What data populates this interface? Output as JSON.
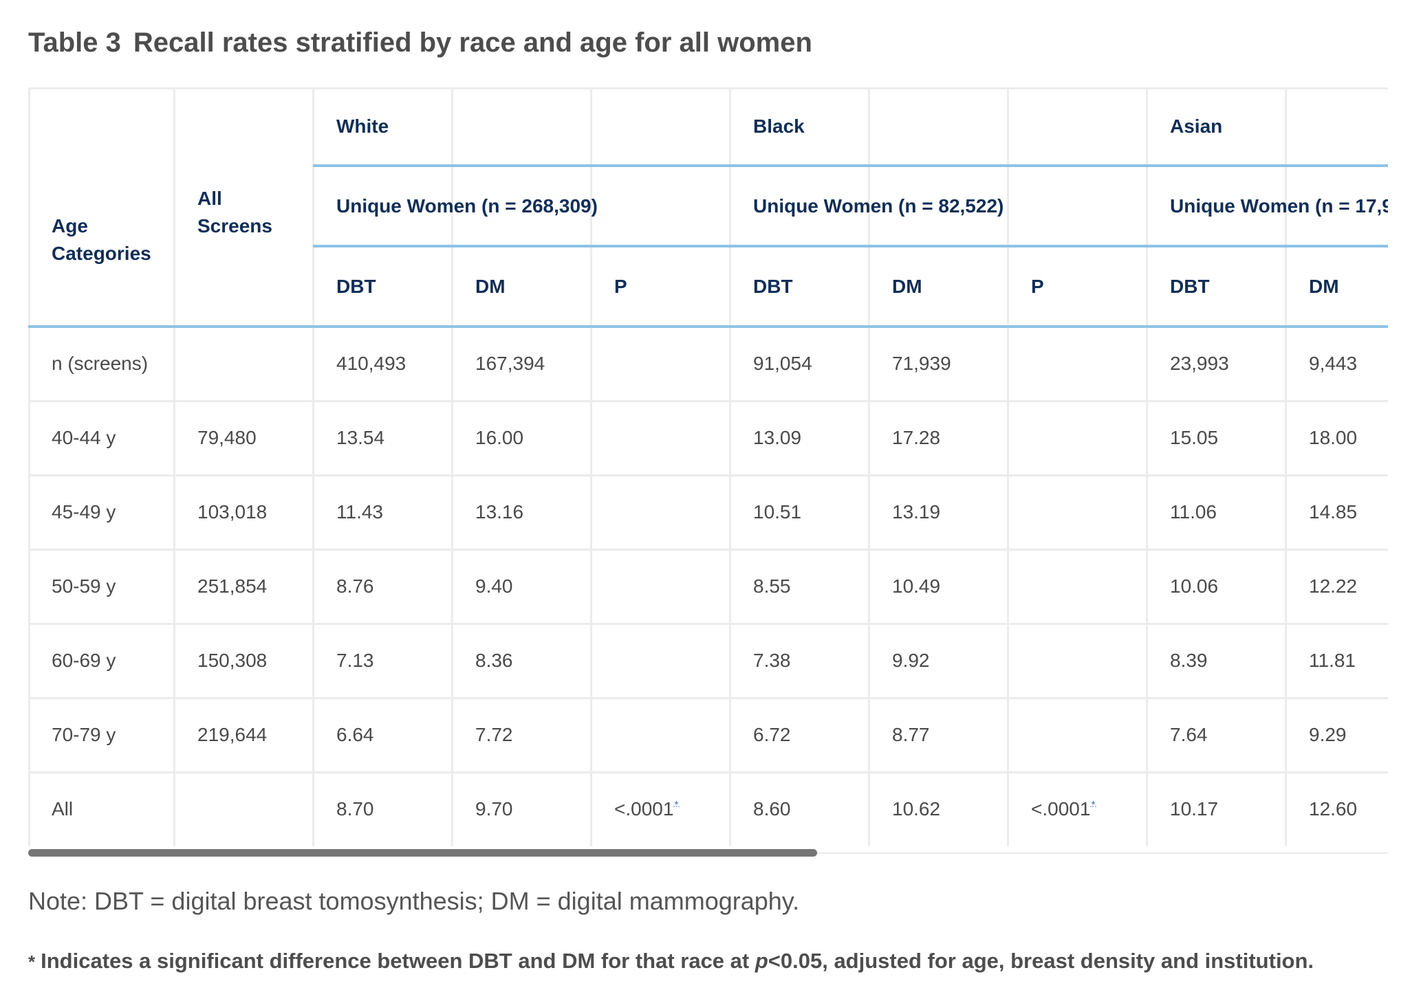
{
  "title": {
    "label": "Table 3",
    "text": "Recall rates stratified by race and age for all women"
  },
  "table": {
    "header": {
      "age_categories": "Age Categories",
      "all_screens": "All Screens",
      "groups": [
        {
          "race": "White",
          "unique": "Unique Women (n = 268,309)"
        },
        {
          "race": "Black",
          "unique": "Unique Women (n = 82,522)"
        },
        {
          "race": "Asian",
          "unique": "Unique Women (n = 17,9"
        }
      ],
      "sub": {
        "dbt": "DBT",
        "dm": "DM",
        "p": "P"
      }
    },
    "rows": [
      {
        "age": "n (screens)",
        "all": "",
        "w_dbt": "410,493",
        "w_dm": "167,394",
        "w_p": "",
        "b_dbt": "91,054",
        "b_dm": "71,939",
        "b_p": "",
        "a_dbt": "23,993",
        "a_dm": "9,443"
      },
      {
        "age": "40-44 y",
        "all": "79,480",
        "w_dbt": "13.54",
        "w_dm": "16.00",
        "w_p": "",
        "b_dbt": "13.09",
        "b_dm": "17.28",
        "b_p": "",
        "a_dbt": "15.05",
        "a_dm": "18.00"
      },
      {
        "age": "45-49 y",
        "all": "103,018",
        "w_dbt": "11.43",
        "w_dm": "13.16",
        "w_p": "",
        "b_dbt": "10.51",
        "b_dm": "13.19",
        "b_p": "",
        "a_dbt": "11.06",
        "a_dm": "14.85"
      },
      {
        "age": "50-59 y",
        "all": "251,854",
        "w_dbt": "8.76",
        "w_dm": "9.40",
        "w_p": "",
        "b_dbt": "8.55",
        "b_dm": "10.49",
        "b_p": "",
        "a_dbt": "10.06",
        "a_dm": "12.22"
      },
      {
        "age": "60-69 y",
        "all": "150,308",
        "w_dbt": "7.13",
        "w_dm": "8.36",
        "w_p": "",
        "b_dbt": "7.38",
        "b_dm": "9.92",
        "b_p": "",
        "a_dbt": "8.39",
        "a_dm": "11.81"
      },
      {
        "age": "70-79 y",
        "all": "219,644",
        "w_dbt": "6.64",
        "w_dm": "7.72",
        "w_p": "",
        "b_dbt": "6.72",
        "b_dm": "8.77",
        "b_p": "",
        "a_dbt": "7.64",
        "a_dm": "9.29"
      },
      {
        "age": "All",
        "all": "",
        "w_dbt": "8.70",
        "w_dm": "9.70",
        "w_p": "<.0001",
        "b_dbt": "8.60",
        "b_dm": "10.62",
        "b_p": "<.0001",
        "a_dbt": "10.17",
        "a_dm": "12.60"
      }
    ],
    "footnote_marker": "*",
    "scroll_position": 0
  },
  "note": "Note: DBT = digital breast tomosynthesis; DM = digital mammography.",
  "footnote": {
    "star": "*",
    "before": "Indicates a significant difference between DBT and DM for that race at ",
    "italic": "p",
    "after": "<0.05, adjusted for age, breast density and institution."
  },
  "colors": {
    "header_text": "#102e57",
    "header_rule": "#8ec3e6",
    "grid": "#ececec",
    "scrollbar": "#767676",
    "footnote_link": "#3d7bb4"
  }
}
